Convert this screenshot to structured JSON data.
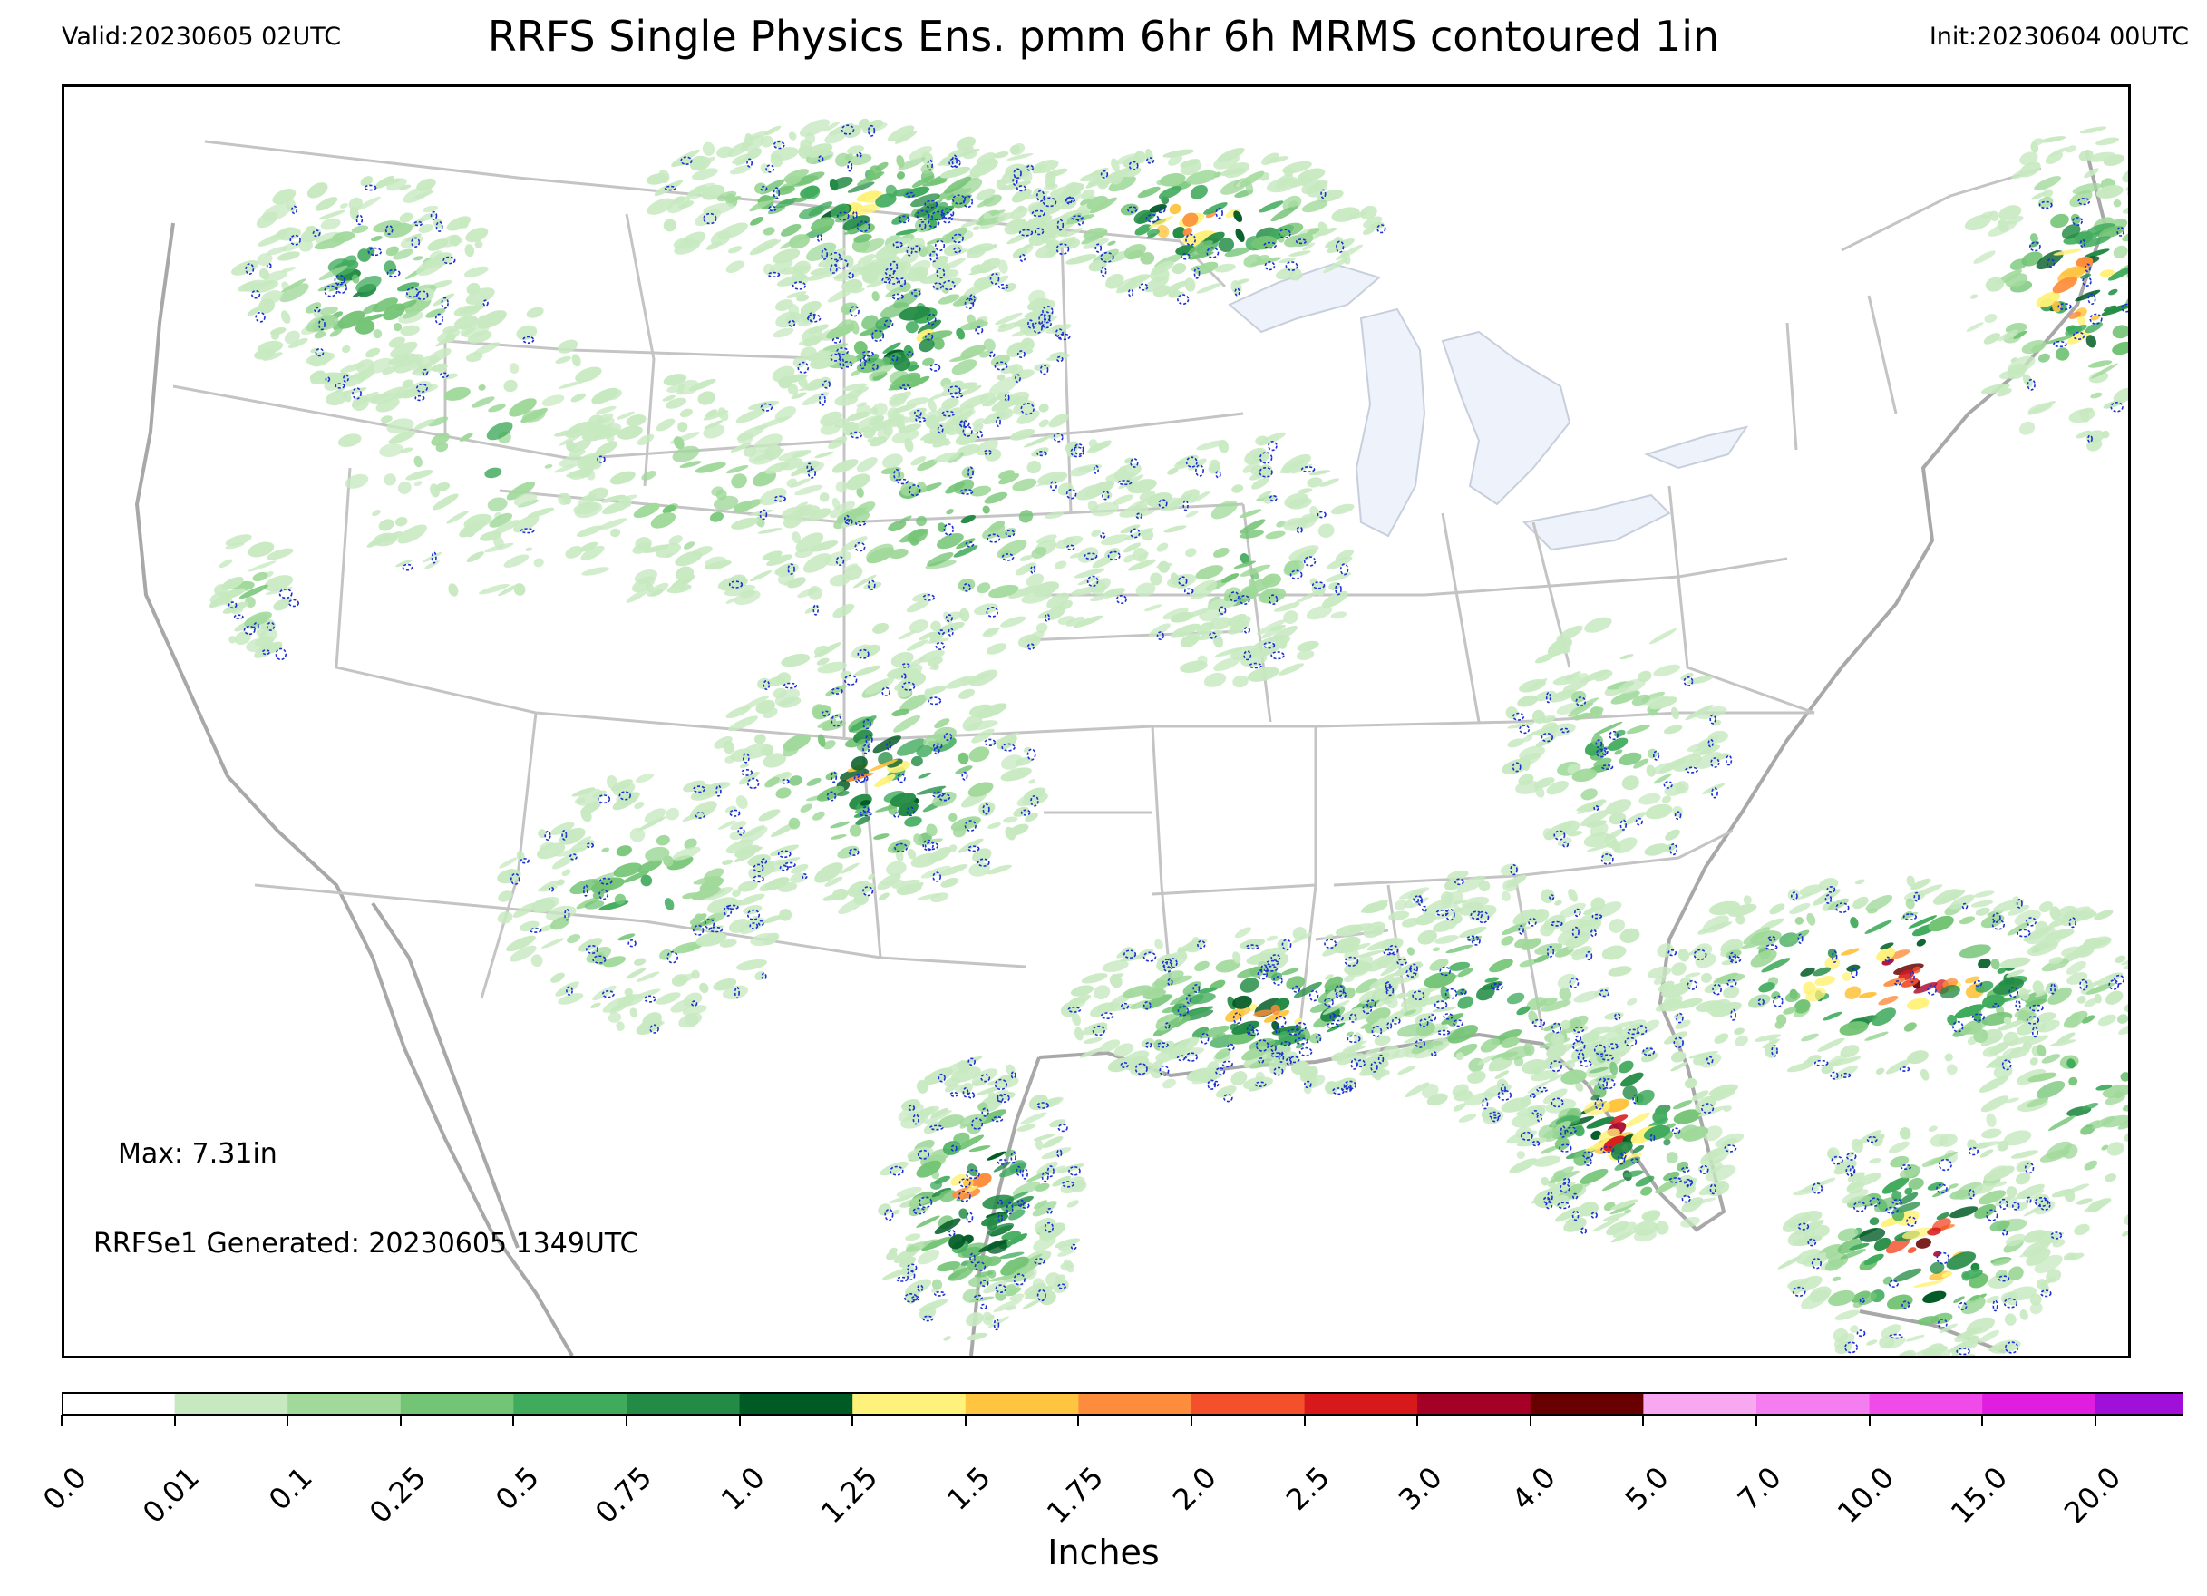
{
  "header": {
    "valid": "Valid:20230605 02UTC",
    "title": "RRFS Single Physics Ens. pmm 6hr 6h MRMS contoured 1in",
    "init": "Init:20230604 00UTC"
  },
  "annotations": {
    "max": "Max: 7.31in",
    "generated": "RRFSe1 Generated: 20230605 1349UTC"
  },
  "colorbar": {
    "label": "Inches",
    "ticks": [
      "0.0",
      "0.01",
      "0.1",
      "0.25",
      "0.5",
      "0.75",
      "1.0",
      "1.25",
      "1.5",
      "1.75",
      "2.0",
      "2.5",
      "3.0",
      "4.0",
      "5.0",
      "7.0",
      "10.0",
      "15.0",
      "20.0"
    ],
    "colors": [
      "#ffffff",
      "#c7e9c0",
      "#a1d99b",
      "#74c476",
      "#41ab5d",
      "#238b45",
      "#005a24",
      "#fff27a",
      "#ffc440",
      "#fd8d3c",
      "#f4502b",
      "#d7191c",
      "#a50026",
      "#680000",
      "#f7a8f0",
      "#f47df0",
      "#f04be8",
      "#df1ee0",
      "#a010d8",
      "#7a00c8"
    ],
    "extend": "max"
  },
  "map": {
    "contour_threshold": "1in",
    "contour_color": "#1a2fd6",
    "border_color": "#b8b8b8",
    "lake_color": "#eef2fa"
  }
}
